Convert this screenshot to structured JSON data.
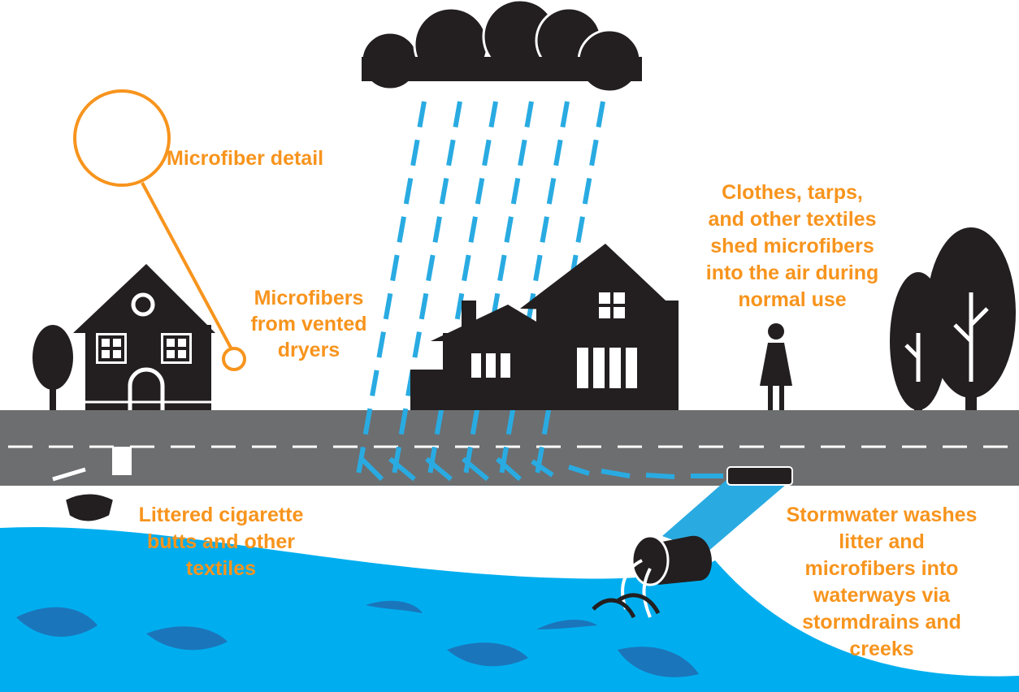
{
  "labels": {
    "microfiber_detail": "Microfiber detail",
    "dryers": [
      "Microfibers",
      "from vented",
      "dryers"
    ],
    "textiles": [
      "Clothes, tarps,",
      "and other textiles",
      "shed microfibers",
      "into the air during",
      "normal use"
    ],
    "litter": [
      "Littered cigarette",
      "butts and other",
      "textiles"
    ],
    "stormwater": [
      "Stormwater washes",
      "litter and",
      "microfibers into",
      "waterways via",
      "stormdrains and",
      "creeks"
    ]
  }
}
